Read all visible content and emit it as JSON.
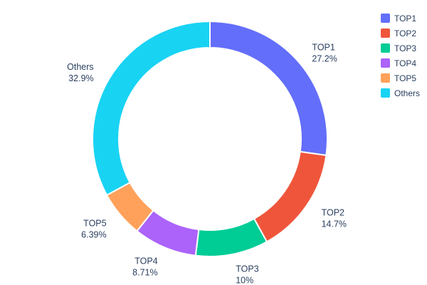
{
  "chart_data": {
    "type": "pie",
    "subtype": "donut",
    "hole": 0.78,
    "direction": "clockwise",
    "start_angle_deg": 0,
    "labels": [
      "TOP1",
      "TOP2",
      "TOP3",
      "TOP4",
      "TOP5",
      "Others"
    ],
    "values": [
      27.2,
      14.7,
      10,
      8.71,
      6.39,
      32.9
    ],
    "percent_labels": [
      "27.2%",
      "14.7%",
      "10%",
      "8.71%",
      "6.39%",
      "32.9%"
    ],
    "colors": [
      "#636efa",
      "#ef553b",
      "#00cc96",
      "#ab63fa",
      "#ffa15a",
      "#19d3f3"
    ],
    "title": "",
    "legend": {
      "position": "right",
      "entries": [
        "TOP1",
        "TOP2",
        "TOP3",
        "TOP4",
        "TOP5",
        "Others"
      ]
    },
    "text_color": "#2a3f5f",
    "background_color": "#ffffff"
  }
}
